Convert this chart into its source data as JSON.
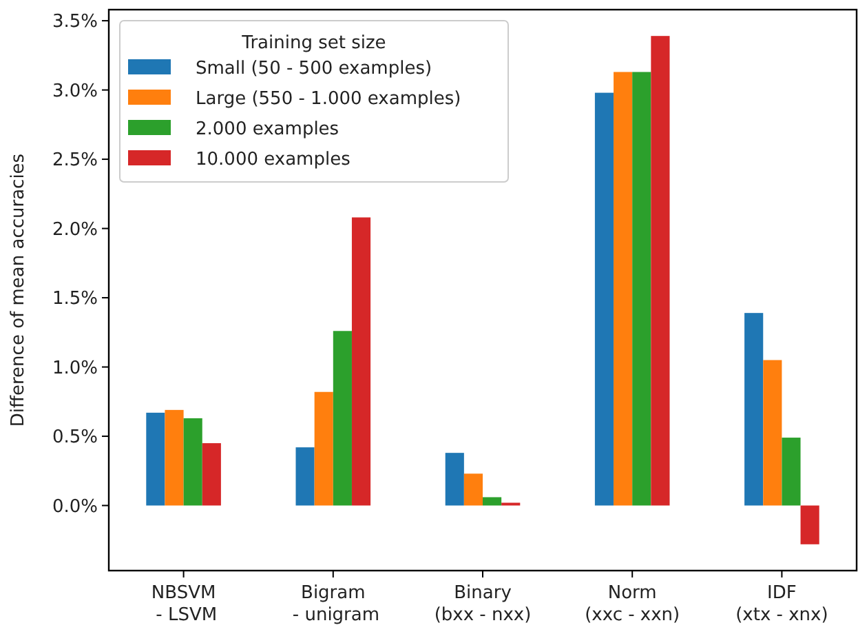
{
  "chart_data": {
    "type": "bar",
    "ylabel": "Difference of mean accuracies",
    "legend_title": "Training set size",
    "legend": "top left",
    "categories": [
      "NBSVM\n - LSVM",
      "Bigram\n - unigram",
      "Binary\n(bxx - nxx)",
      "Norm\n(xxc - xxn)",
      "IDF\n(xtx - xnx)"
    ],
    "series": [
      {
        "name": "Small (50 - 500 examples)",
        "color": "#1f77b4",
        "values": [
          0.67,
          0.42,
          0.38,
          2.98,
          1.39
        ]
      },
      {
        "name": "Large (550 - 1.000 examples)",
        "color": "#ff7f0e",
        "values": [
          0.69,
          0.82,
          0.23,
          3.13,
          1.05
        ]
      },
      {
        "name": "2.000 examples",
        "color": "#2ca02c",
        "values": [
          0.63,
          1.26,
          0.06,
          3.13,
          0.49
        ]
      },
      {
        "name": "10.000 examples",
        "color": "#d62728",
        "values": [
          0.45,
          2.08,
          0.02,
          3.39,
          -0.28
        ]
      }
    ],
    "ylim": [
      -0.47,
      3.58
    ],
    "yticks": [
      {
        "value": 0,
        "label": "0.0%"
      },
      {
        "value": 0.5,
        "label": "0.5%"
      },
      {
        "value": 1,
        "label": "1.0%"
      },
      {
        "value": 1.5,
        "label": "1.5%"
      },
      {
        "value": 2,
        "label": "2.0%"
      },
      {
        "value": 2.5,
        "label": "2.5%"
      },
      {
        "value": 3,
        "label": "3.0%"
      },
      {
        "value": 3.5,
        "label": "3.5%"
      }
    ]
  }
}
